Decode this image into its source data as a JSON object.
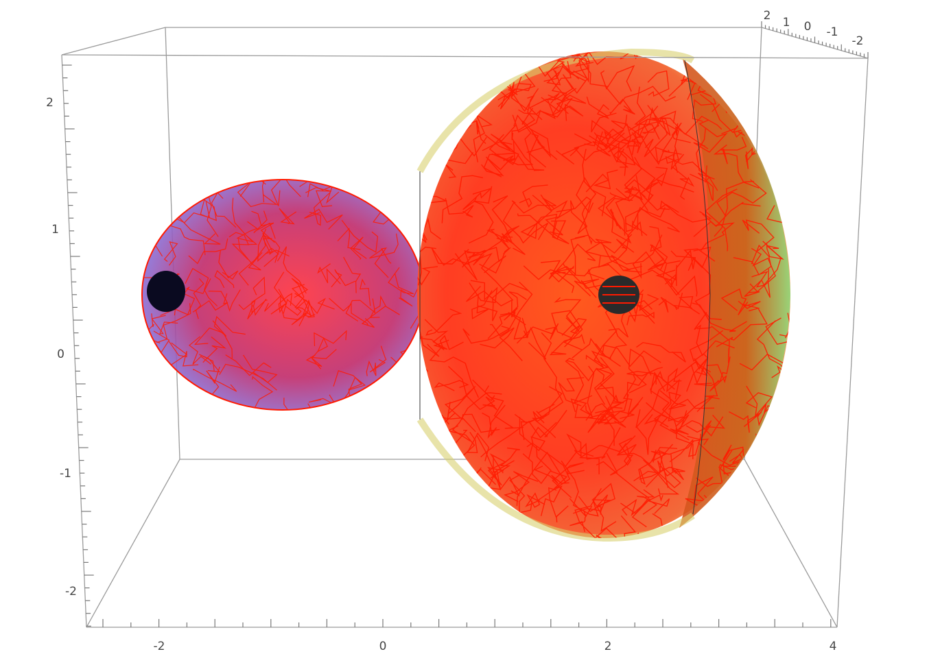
{
  "axes": {
    "horizontal_ticks": [
      "-2",
      "0",
      "2",
      "4"
    ],
    "vertical_ticks": [
      "2",
      "1",
      "0",
      "-1",
      "-2"
    ],
    "depth_ticks": [
      "2",
      "1",
      "0",
      "-1",
      "-2"
    ]
  },
  "colors": {
    "ellipsoid_fill": "#8a8cf0",
    "sphere_fill": "#e6e08a",
    "sphere_rim": "#7fd98a",
    "mesh_stroke": "#ff1a00",
    "hole_fill": "#0a0a20",
    "box_stroke": "#999999"
  }
}
